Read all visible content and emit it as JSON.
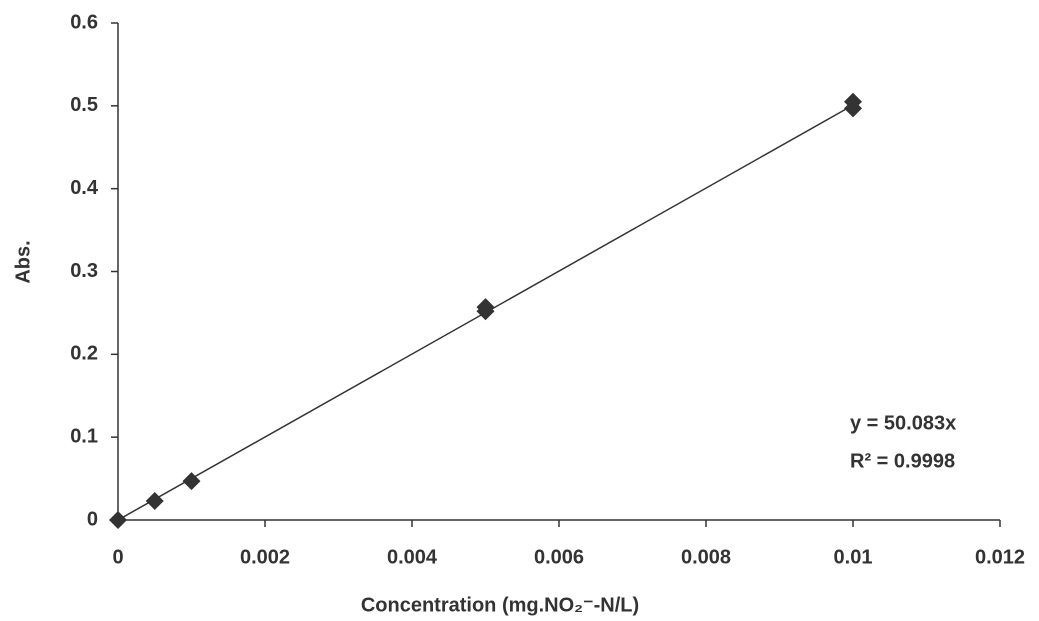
{
  "chart_data": {
    "type": "scatter",
    "x_label": "Concentration (mg.NO₂⁻-N/L)",
    "y_label": "Abs.",
    "series": [
      {
        "color": "#333333",
        "x": [
          0,
          0.0005,
          0.001,
          0.005,
          0.005,
          0.01,
          0.01
        ],
        "values": [
          0,
          0.023,
          0.047,
          0.252,
          0.257,
          0.497,
          0.505
        ]
      }
    ],
    "trendline": {
      "slope": 50.083,
      "equation": "y = 50.083x",
      "r_squared": "R² = 0.9998"
    },
    "xlim": [
      0,
      0.012
    ],
    "ylim": [
      0,
      0.6
    ],
    "xticks": [
      0,
      0.002,
      0.004,
      0.006,
      0.008,
      0.01,
      0.012
    ],
    "yticks": [
      0,
      0.1,
      0.2,
      0.3,
      0.4,
      0.5,
      0.6
    ],
    "grid": false
  }
}
